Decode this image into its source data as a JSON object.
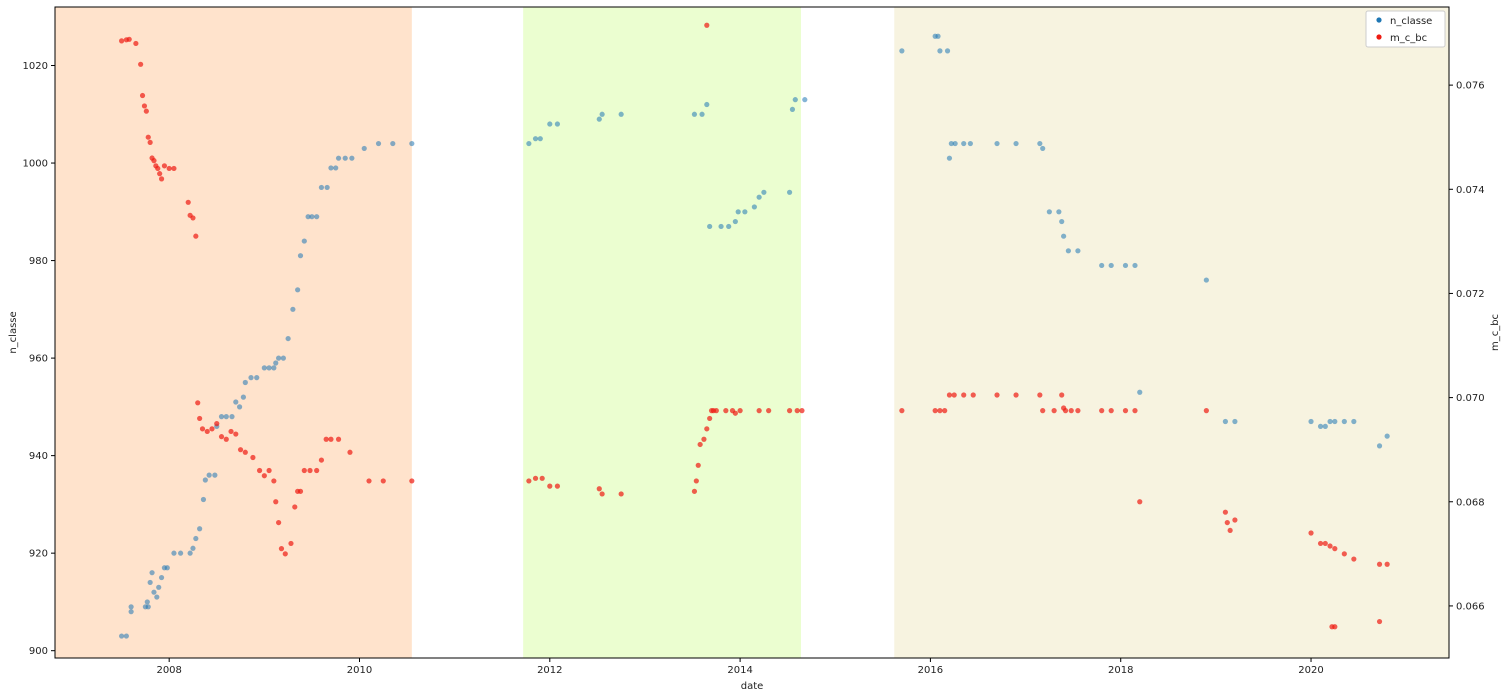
{
  "chart_data": {
    "type": "scatter",
    "xlabel": "date",
    "ylabel": "n_classe",
    "y2label": "m_c_bc",
    "xlim": [
      2006.8,
      2021.45
    ],
    "ylim": [
      898.5,
      1032
    ],
    "y2lim": [
      0.065,
      0.0775
    ],
    "x_ticks": [
      2008,
      2010,
      2012,
      2014,
      2016,
      2018,
      2020
    ],
    "y_ticks": [
      900,
      920,
      940,
      960,
      980,
      1000,
      1020
    ],
    "y2_ticks": [
      0.066,
      0.068,
      0.07,
      0.072,
      0.074,
      0.076
    ],
    "grid": false,
    "legend_position": "top-right",
    "legend": [
      {
        "label": "n_classe",
        "color": "#1f77b4"
      },
      {
        "label": "m_c_bc",
        "color": "#ee1a11"
      }
    ],
    "shaded_regions": [
      {
        "start": 2006.8,
        "end": 2010.55,
        "color": "#ffe3cc"
      },
      {
        "start": 2011.72,
        "end": 2014.64,
        "color": "#ebfed0"
      },
      {
        "start": 2015.62,
        "end": 2021.45,
        "color": "#f7f3e0"
      }
    ],
    "series": [
      {
        "name": "n_classe",
        "axis": "left",
        "points": [
          [
            2007.5,
            903
          ],
          [
            2007.55,
            903
          ],
          [
            2007.6,
            908
          ],
          [
            2007.6,
            909
          ],
          [
            2007.75,
            909
          ],
          [
            2007.77,
            910
          ],
          [
            2007.78,
            909
          ],
          [
            2007.8,
            914
          ],
          [
            2007.82,
            916
          ],
          [
            2007.84,
            912
          ],
          [
            2007.87,
            911
          ],
          [
            2007.89,
            913
          ],
          [
            2007.92,
            915
          ],
          [
            2007.95,
            917
          ],
          [
            2007.98,
            917
          ],
          [
            2008.05,
            920
          ],
          [
            2008.12,
            920
          ],
          [
            2008.22,
            920
          ],
          [
            2008.25,
            921
          ],
          [
            2008.28,
            923
          ],
          [
            2008.32,
            925
          ],
          [
            2008.36,
            931
          ],
          [
            2008.38,
            935
          ],
          [
            2008.42,
            936
          ],
          [
            2008.48,
            936
          ],
          [
            2008.5,
            946
          ],
          [
            2008.55,
            948
          ],
          [
            2008.6,
            948
          ],
          [
            2008.66,
            948
          ],
          [
            2008.7,
            951
          ],
          [
            2008.74,
            950
          ],
          [
            2008.78,
            952
          ],
          [
            2008.8,
            955
          ],
          [
            2008.86,
            956
          ],
          [
            2008.92,
            956
          ],
          [
            2009.0,
            958
          ],
          [
            2009.05,
            958
          ],
          [
            2009.1,
            958
          ],
          [
            2009.12,
            959
          ],
          [
            2009.15,
            960
          ],
          [
            2009.2,
            960
          ],
          [
            2009.25,
            964
          ],
          [
            2009.3,
            970
          ],
          [
            2009.35,
            974
          ],
          [
            2009.38,
            981
          ],
          [
            2009.42,
            984
          ],
          [
            2009.46,
            989
          ],
          [
            2009.5,
            989
          ],
          [
            2009.55,
            989
          ],
          [
            2009.6,
            995
          ],
          [
            2009.66,
            995
          ],
          [
            2009.7,
            999
          ],
          [
            2009.75,
            999
          ],
          [
            2009.78,
            1001
          ],
          [
            2009.85,
            1001
          ],
          [
            2009.92,
            1001
          ],
          [
            2010.05,
            1003
          ],
          [
            2010.2,
            1004
          ],
          [
            2010.35,
            1004
          ],
          [
            2010.55,
            1004
          ],
          [
            2011.78,
            1004
          ],
          [
            2011.85,
            1005
          ],
          [
            2011.9,
            1005
          ],
          [
            2012.0,
            1008
          ],
          [
            2012.08,
            1008
          ],
          [
            2012.52,
            1009
          ],
          [
            2012.55,
            1010
          ],
          [
            2012.75,
            1010
          ],
          [
            2013.52,
            1010
          ],
          [
            2013.6,
            1010
          ],
          [
            2013.65,
            1012
          ],
          [
            2013.68,
            987
          ],
          [
            2013.8,
            987
          ],
          [
            2013.88,
            987
          ],
          [
            2013.95,
            988
          ],
          [
            2013.98,
            990
          ],
          [
            2014.05,
            990
          ],
          [
            2014.15,
            991
          ],
          [
            2014.2,
            993
          ],
          [
            2014.25,
            994
          ],
          [
            2014.52,
            994
          ],
          [
            2014.55,
            1011
          ],
          [
            2014.58,
            1013
          ],
          [
            2014.68,
            1013
          ],
          [
            2015.7,
            1023
          ],
          [
            2016.05,
            1026
          ],
          [
            2016.08,
            1026
          ],
          [
            2016.1,
            1023
          ],
          [
            2016.18,
            1023
          ],
          [
            2016.2,
            1001
          ],
          [
            2016.22,
            1004
          ],
          [
            2016.26,
            1004
          ],
          [
            2016.35,
            1004
          ],
          [
            2016.42,
            1004
          ],
          [
            2016.7,
            1004
          ],
          [
            2016.9,
            1004
          ],
          [
            2017.15,
            1004
          ],
          [
            2017.18,
            1003
          ],
          [
            2017.25,
            990
          ],
          [
            2017.35,
            990
          ],
          [
            2017.38,
            988
          ],
          [
            2017.4,
            985
          ],
          [
            2017.45,
            982
          ],
          [
            2017.55,
            982
          ],
          [
            2017.8,
            979
          ],
          [
            2017.9,
            979
          ],
          [
            2018.05,
            979
          ],
          [
            2018.15,
            979
          ],
          [
            2018.2,
            953
          ],
          [
            2018.9,
            976
          ],
          [
            2019.1,
            947
          ],
          [
            2019.2,
            947
          ],
          [
            2020.0,
            947
          ],
          [
            2020.1,
            946
          ],
          [
            2020.15,
            946
          ],
          [
            2020.2,
            947
          ],
          [
            2020.25,
            947
          ],
          [
            2020.35,
            947
          ],
          [
            2020.45,
            947
          ],
          [
            2020.72,
            942
          ],
          [
            2020.8,
            944
          ]
        ]
      },
      {
        "name": "m_c_bc",
        "axis": "right",
        "points": [
          [
            2007.5,
            0.07685
          ],
          [
            2007.55,
            0.07687
          ],
          [
            2007.58,
            0.07688
          ],
          [
            2007.65,
            0.0768
          ],
          [
            2007.7,
            0.0764
          ],
          [
            2007.72,
            0.0758
          ],
          [
            2007.74,
            0.0756
          ],
          [
            2007.76,
            0.0755
          ],
          [
            2007.78,
            0.075
          ],
          [
            2007.8,
            0.0749
          ],
          [
            2007.82,
            0.0746
          ],
          [
            2007.84,
            0.07455
          ],
          [
            2007.86,
            0.07445
          ],
          [
            2007.88,
            0.0744
          ],
          [
            2007.9,
            0.0743
          ],
          [
            2007.92,
            0.0742
          ],
          [
            2007.95,
            0.07445
          ],
          [
            2008.0,
            0.0744
          ],
          [
            2008.05,
            0.0744
          ],
          [
            2008.2,
            0.07375
          ],
          [
            2008.22,
            0.0735
          ],
          [
            2008.25,
            0.07345
          ],
          [
            2008.28,
            0.0731
          ],
          [
            2008.3,
            0.0699
          ],
          [
            2008.32,
            0.0696
          ],
          [
            2008.35,
            0.0694
          ],
          [
            2008.4,
            0.06935
          ],
          [
            2008.45,
            0.0694
          ],
          [
            2008.5,
            0.0695
          ],
          [
            2008.55,
            0.06925
          ],
          [
            2008.6,
            0.0692
          ],
          [
            2008.65,
            0.06935
          ],
          [
            2008.7,
            0.0693
          ],
          [
            2008.75,
            0.069
          ],
          [
            2008.8,
            0.06895
          ],
          [
            2008.88,
            0.06885
          ],
          [
            2008.95,
            0.0686
          ],
          [
            2009.0,
            0.0685
          ],
          [
            2009.05,
            0.0686
          ],
          [
            2009.1,
            0.0684
          ],
          [
            2009.12,
            0.068
          ],
          [
            2009.15,
            0.0676
          ],
          [
            2009.18,
            0.0671
          ],
          [
            2009.22,
            0.067
          ],
          [
            2009.28,
            0.0672
          ],
          [
            2009.32,
            0.0679
          ],
          [
            2009.35,
            0.0682
          ],
          [
            2009.38,
            0.0682
          ],
          [
            2009.42,
            0.0686
          ],
          [
            2009.48,
            0.0686
          ],
          [
            2009.55,
            0.0686
          ],
          [
            2009.6,
            0.0688
          ],
          [
            2009.65,
            0.0692
          ],
          [
            2009.7,
            0.0692
          ],
          [
            2009.78,
            0.0692
          ],
          [
            2009.9,
            0.06895
          ],
          [
            2010.1,
            0.0684
          ],
          [
            2010.25,
            0.0684
          ],
          [
            2010.55,
            0.0684
          ],
          [
            2011.78,
            0.0684
          ],
          [
            2011.85,
            0.06845
          ],
          [
            2011.92,
            0.06845
          ],
          [
            2012.0,
            0.0683
          ],
          [
            2012.08,
            0.0683
          ],
          [
            2012.52,
            0.06825
          ],
          [
            2012.55,
            0.06815
          ],
          [
            2012.75,
            0.06815
          ],
          [
            2013.52,
            0.0682
          ],
          [
            2013.54,
            0.0684
          ],
          [
            2013.56,
            0.0687
          ],
          [
            2013.58,
            0.0691
          ],
          [
            2013.62,
            0.0692
          ],
          [
            2013.65,
            0.0694
          ],
          [
            2013.68,
            0.0696
          ],
          [
            2013.7,
            0.06975
          ],
          [
            2013.72,
            0.06975
          ],
          [
            2013.75,
            0.06975
          ],
          [
            2013.85,
            0.06975
          ],
          [
            2013.92,
            0.06975
          ],
          [
            2013.95,
            0.0697
          ],
          [
            2014.0,
            0.06975
          ],
          [
            2014.2,
            0.06975
          ],
          [
            2014.3,
            0.06975
          ],
          [
            2014.52,
            0.06975
          ],
          [
            2014.6,
            0.06975
          ],
          [
            2014.65,
            0.06975
          ],
          [
            2013.65,
            0.07715
          ],
          [
            2015.7,
            0.06975
          ],
          [
            2016.05,
            0.06975
          ],
          [
            2016.1,
            0.06975
          ],
          [
            2016.15,
            0.06975
          ],
          [
            2016.2,
            0.07005
          ],
          [
            2016.25,
            0.07005
          ],
          [
            2016.35,
            0.07005
          ],
          [
            2016.45,
            0.07005
          ],
          [
            2016.7,
            0.07005
          ],
          [
            2016.9,
            0.07005
          ],
          [
            2017.15,
            0.07005
          ],
          [
            2017.18,
            0.06975
          ],
          [
            2017.3,
            0.06975
          ],
          [
            2017.38,
            0.07005
          ],
          [
            2017.4,
            0.0698
          ],
          [
            2017.42,
            0.06975
          ],
          [
            2017.48,
            0.06975
          ],
          [
            2017.55,
            0.06975
          ],
          [
            2017.8,
            0.06975
          ],
          [
            2017.9,
            0.06975
          ],
          [
            2018.05,
            0.06975
          ],
          [
            2018.15,
            0.06975
          ],
          [
            2018.2,
            0.068
          ],
          [
            2018.9,
            0.06975
          ],
          [
            2019.1,
            0.0678
          ],
          [
            2019.12,
            0.0676
          ],
          [
            2019.15,
            0.06745
          ],
          [
            2019.2,
            0.06765
          ],
          [
            2020.0,
            0.0674
          ],
          [
            2020.1,
            0.0672
          ],
          [
            2020.15,
            0.0672
          ],
          [
            2020.2,
            0.06715
          ],
          [
            2020.25,
            0.0671
          ],
          [
            2020.35,
            0.067
          ],
          [
            2020.45,
            0.0669
          ],
          [
            2020.72,
            0.0668
          ],
          [
            2020.8,
            0.0668
          ],
          [
            2020.22,
            0.0656
          ],
          [
            2020.25,
            0.0656
          ],
          [
            2020.72,
            0.0657
          ]
        ]
      }
    ]
  }
}
